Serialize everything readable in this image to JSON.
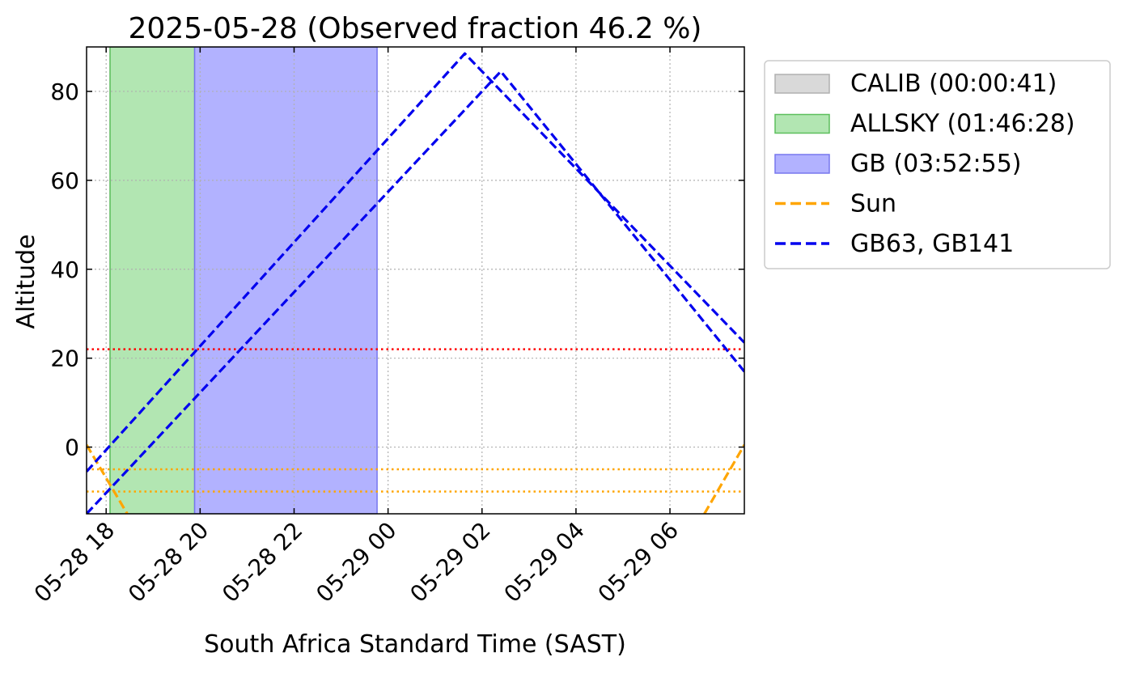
{
  "chart_data": {
    "type": "line",
    "title": "2025-05-28 (Observed fraction 46.2 %)",
    "xlabel": "South Africa Standard Time (SAST)",
    "ylabel": "Altitude",
    "xlim": [
      "2025-05-28 17:35",
      "2025-05-29 07:35"
    ],
    "ylim": [
      -15,
      90
    ],
    "x_ticks": [
      {
        "at": "2025-05-28 18:00",
        "label": "05-28 18"
      },
      {
        "at": "2025-05-28 20:00",
        "label": "05-28 20"
      },
      {
        "at": "2025-05-28 22:00",
        "label": "05-28 22"
      },
      {
        "at": "2025-05-29 00:00",
        "label": "05-29 00"
      },
      {
        "at": "2025-05-29 02:00",
        "label": "05-29 02"
      },
      {
        "at": "2025-05-29 04:00",
        "label": "05-29 04"
      },
      {
        "at": "2025-05-29 06:00",
        "label": "05-29 06"
      }
    ],
    "y_ticks": [
      0,
      20,
      40,
      60,
      80
    ],
    "grid": true,
    "legend_position": "outside right, top",
    "spans": [
      {
        "name": "CALIB (00:00:41)",
        "color": "#d9d9d9",
        "border": "#b0b0b0",
        "from": "2025-05-28 18:05",
        "to": "2025-05-28 18:06"
      },
      {
        "name": "ALLSKY (01:46:28)",
        "color": "#b2e6b2",
        "border": "#5dbf5d",
        "from": "2025-05-28 18:05",
        "to": "2025-05-28 19:53"
      },
      {
        "name": "GB (03:52:55)",
        "color": "#b2b2ff",
        "border": "#7777ee",
        "from": "2025-05-28 19:53",
        "to": "2025-05-28 23:46"
      }
    ],
    "hlines": [
      {
        "y": 22,
        "color": "#ff0000"
      },
      {
        "y": -5,
        "color": "#ffa500"
      },
      {
        "y": -10,
        "color": "#ffa500"
      }
    ],
    "series": [
      {
        "name": "Sun",
        "color": "#ffa500",
        "points": [
          {
            "x": "2025-05-28 17:35",
            "y": 0.5
          },
          {
            "x": "2025-05-28 18:27",
            "y": -15
          },
          {
            "x": "2025-05-29 06:44",
            "y": -15
          },
          {
            "x": "2025-05-29 07:35",
            "y": 0.5
          }
        ]
      },
      {
        "name": "GB63, GB141",
        "color": "#0000ee",
        "lines": [
          [
            {
              "x": "2025-05-28 17:35",
              "y": -5.5
            },
            {
              "x": "2025-05-29 01:38",
              "y": 88.5
            },
            {
              "x": "2025-05-29 07:35",
              "y": 23.5
            }
          ],
          [
            {
              "x": "2025-05-28 17:35",
              "y": -15
            },
            {
              "x": "2025-05-29 02:24",
              "y": 84.5
            },
            {
              "x": "2025-05-29 07:35",
              "y": 17
            }
          ]
        ]
      }
    ]
  },
  "legend": {
    "items": [
      {
        "label": "CALIB (00:00:41)",
        "kind": "patch",
        "color": "#d9d9d9",
        "border": "#b0b0b0"
      },
      {
        "label": "ALLSKY (01:46:28)",
        "kind": "patch",
        "color": "#b2e6b2",
        "border": "#5dbf5d"
      },
      {
        "label": "GB (03:52:55)",
        "kind": "patch",
        "color": "#b2b2ff",
        "border": "#7777ee"
      },
      {
        "label": "Sun",
        "kind": "dash",
        "color": "#ffa500"
      },
      {
        "label": "GB63, GB141",
        "kind": "dash",
        "color": "#0000ee"
      }
    ]
  }
}
